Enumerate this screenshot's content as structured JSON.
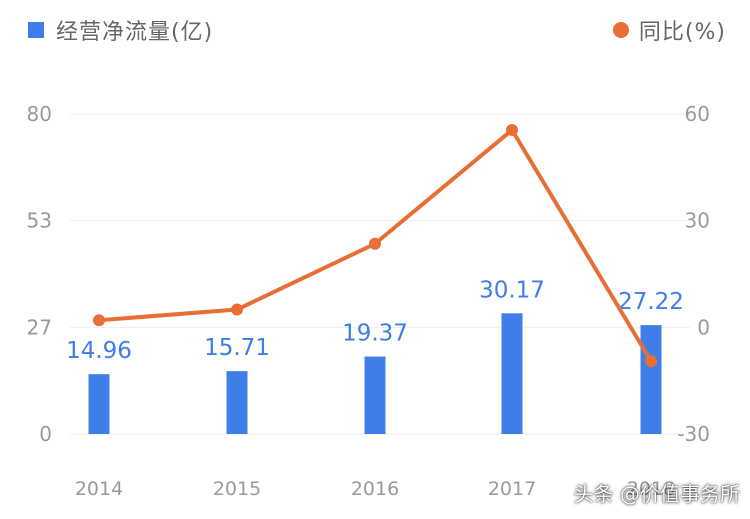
{
  "legend": {
    "bar_label": "经营净流量(亿)",
    "line_label": "同比(%)"
  },
  "watermark": "头条 @价值事务所",
  "chart_data": {
    "type": "bar+line",
    "categories": [
      "2014",
      "2015",
      "2016",
      "2017",
      "2018"
    ],
    "series": [
      {
        "name": "经营净流量(亿)",
        "type": "bar",
        "axis": "left",
        "values": [
          14.96,
          15.71,
          19.37,
          30.17,
          27.22
        ],
        "labels": [
          "14.96",
          "15.71",
          "19.37",
          "30.17",
          "27.22"
        ],
        "color": "#3f7ee8"
      },
      {
        "name": "同比(%)",
        "type": "line",
        "axis": "right",
        "values": [
          2.0,
          5.0,
          23.5,
          55.5,
          -9.5
        ],
        "color": "#e86e35"
      }
    ],
    "left_axis": {
      "ticks": [
        "0",
        "27",
        "53",
        "80"
      ],
      "ylim": [
        0,
        80
      ]
    },
    "right_axis": {
      "ticks": [
        "-30",
        "0",
        "30",
        "60"
      ],
      "ylim": [
        -30,
        60
      ]
    },
    "grid": true,
    "legend_position": "top"
  }
}
